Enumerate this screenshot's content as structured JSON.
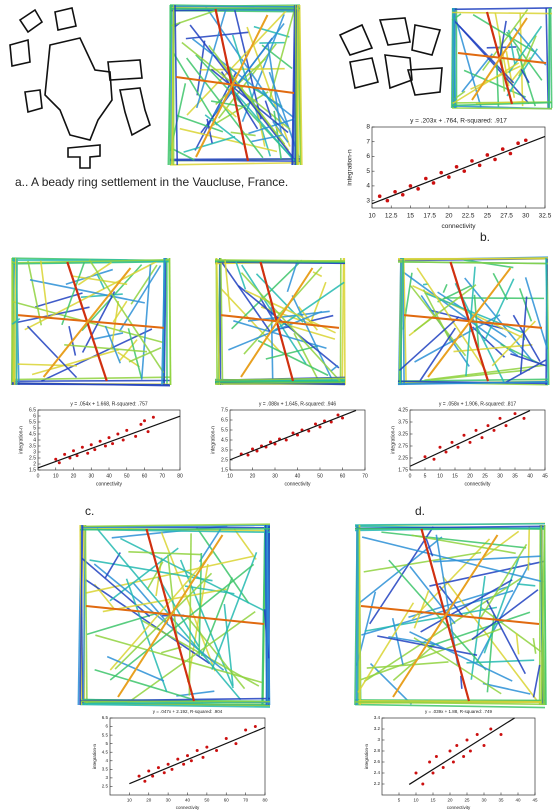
{
  "captions": {
    "a": "a.. A beady ring settlement in the Vaucluse, France.",
    "b": "b.",
    "c": "c.",
    "d": "d."
  },
  "chart_data": [
    {
      "type": "scatter",
      "title": "y = .203x + .764, R-squared: .917",
      "x_label": "connectivity",
      "y_label": "integration-n",
      "color": "#cc1010",
      "x": [
        11,
        12,
        13,
        14,
        15,
        16,
        17,
        18,
        19,
        20,
        21,
        22,
        23,
        24,
        25,
        26,
        27,
        28,
        29,
        30
      ],
      "values": [
        3.3,
        3.0,
        3.6,
        3.4,
        4.0,
        3.8,
        4.5,
        4.2,
        4.9,
        4.6,
        5.3,
        5.0,
        5.7,
        5.4,
        6.1,
        5.8,
        6.5,
        6.2,
        6.9,
        7.1
      ],
      "xlim": [
        10,
        32.5
      ],
      "ylim": [
        2.5,
        8
      ],
      "xticks": [
        10,
        12.5,
        15,
        17.5,
        20,
        22.5,
        25,
        27.5,
        30,
        32.5
      ],
      "yticks": [
        3,
        4,
        5,
        6,
        7,
        8
      ],
      "trendline": {
        "x": [
          10,
          32.5
        ],
        "values": [
          2.794,
          7.362
        ],
        "color": "#111111"
      }
    },
    {
      "type": "scatter",
      "title": "y = .054x + 1.668, R-squared: .757",
      "x_label": "connectivity",
      "y_label": "integration-n",
      "color": "#cc1010",
      "x": [
        10,
        12,
        15,
        18,
        20,
        22,
        25,
        28,
        30,
        32,
        35,
        38,
        40,
        42,
        45,
        48,
        50,
        55,
        58,
        60,
        62,
        65
      ],
      "values": [
        2.4,
        2.1,
        2.8,
        2.5,
        3.1,
        2.7,
        3.4,
        2.9,
        3.6,
        3.2,
        3.9,
        3.5,
        4.2,
        3.7,
        4.5,
        4.0,
        4.8,
        4.3,
        5.3,
        5.6,
        4.7,
        5.9
      ],
      "xlim": [
        0,
        80
      ],
      "ylim": [
        1.5,
        6.5
      ],
      "xticks": [
        0,
        10,
        20,
        30,
        40,
        50,
        60,
        70,
        80
      ],
      "yticks": [
        1.5,
        2,
        2.5,
        3,
        3.5,
        4,
        4.5,
        5,
        5.5,
        6,
        6.5
      ],
      "trendline": {
        "x": [
          0,
          80
        ],
        "values": [
          1.668,
          5.988
        ],
        "color": "#111111"
      }
    },
    {
      "type": "scatter",
      "title": "y = .088x + 1.645, R-squared: .946",
      "x_label": "connectivity",
      "y_label": "integration-n",
      "color": "#cc1010",
      "x": [
        15,
        18,
        20,
        22,
        24,
        26,
        28,
        30,
        32,
        35,
        38,
        40,
        42,
        45,
        48,
        50,
        52,
        55,
        58,
        60
      ],
      "values": [
        3.1,
        3.0,
        3.6,
        3.4,
        3.9,
        3.8,
        4.3,
        4.1,
        4.6,
        4.5,
        5.2,
        5.0,
        5.5,
        5.4,
        6.1,
        5.8,
        6.4,
        6.3,
        7.0,
        6.7
      ],
      "xlim": [
        10,
        70
      ],
      "ylim": [
        1.5,
        7.5
      ],
      "xticks": [
        10,
        20,
        30,
        40,
        50,
        60,
        70
      ],
      "yticks": [
        1.5,
        2.5,
        3.5,
        4.5,
        5.5,
        6.5,
        7.5
      ],
      "trendline": {
        "x": [
          10,
          66
        ],
        "values": [
          2.525,
          7.453
        ],
        "color": "#111111"
      }
    },
    {
      "type": "scatter",
      "title": "y = .058x + 1.906, R-squared: .817",
      "x_label": "connectivity",
      "y_label": "integration-n",
      "color": "#cc1010",
      "x": [
        5,
        8,
        10,
        12,
        14,
        16,
        18,
        20,
        22,
        24,
        26,
        28,
        30,
        32,
        35,
        38
      ],
      "values": [
        2.3,
        2.2,
        2.7,
        2.5,
        2.9,
        2.7,
        3.2,
        2.9,
        3.4,
        3.1,
        3.6,
        3.4,
        3.9,
        3.6,
        4.1,
        3.9
      ],
      "xlim": [
        0,
        45
      ],
      "ylim": [
        1.75,
        4.25
      ],
      "xticks": [
        0,
        5,
        10,
        15,
        20,
        25,
        30,
        35,
        40,
        45
      ],
      "yticks": [
        1.75,
        2.25,
        2.75,
        3.25,
        3.75,
        4.25
      ],
      "trendline": {
        "x": [
          0,
          40
        ],
        "values": [
          1.906,
          4.226
        ],
        "color": "#111111"
      }
    },
    {
      "type": "scatter",
      "title": "y = .047x + 2.192, R-squared: .904",
      "x_label": "connectivity",
      "y_label": "integration-n",
      "color": "#cc1010",
      "x": [
        15,
        18,
        20,
        22,
        25,
        28,
        30,
        32,
        35,
        38,
        40,
        42,
        45,
        48,
        50,
        55,
        60,
        65,
        70,
        75
      ],
      "values": [
        3.1,
        2.8,
        3.4,
        3.1,
        3.6,
        3.3,
        3.8,
        3.5,
        4.1,
        3.8,
        4.3,
        4.0,
        4.6,
        4.2,
        4.8,
        4.6,
        5.3,
        5.0,
        5.8,
        6.0
      ],
      "xlim": [
        0,
        80
      ],
      "ylim": [
        2,
        6.5
      ],
      "xticks": [
        10,
        20,
        30,
        40,
        50,
        60,
        70,
        80
      ],
      "yticks": [
        2.5,
        3,
        3.5,
        4,
        4.5,
        5,
        5.5,
        6,
        6.5
      ],
      "trendline": {
        "x": [
          10,
          80
        ],
        "values": [
          2.662,
          5.952
        ],
        "color": "#111111"
      }
    },
    {
      "type": "scatter",
      "title": "y = .039x + 1.88, R-squared: .749",
      "x_label": "connectivity",
      "y_label": "integration-n",
      "color": "#cc1010",
      "x": [
        10,
        12,
        14,
        15,
        16,
        18,
        20,
        21,
        22,
        24,
        25,
        26,
        28,
        30,
        32,
        35
      ],
      "values": [
        2.4,
        2.2,
        2.6,
        2.4,
        2.7,
        2.5,
        2.8,
        2.6,
        2.9,
        2.7,
        3.0,
        2.8,
        3.1,
        2.9,
        3.2,
        3.1
      ],
      "xlim": [
        0,
        45
      ],
      "ylim": [
        2,
        3.4
      ],
      "xticks": [
        5,
        10,
        15,
        20,
        25,
        30,
        35,
        40,
        45
      ],
      "yticks": [
        2.2,
        2.4,
        2.6,
        2.8,
        3,
        3.2,
        3.4
      ],
      "trendline": {
        "x": [
          8,
          39
        ],
        "values": [
          2.192,
          3.401
        ],
        "color": "#111111"
      }
    }
  ]
}
